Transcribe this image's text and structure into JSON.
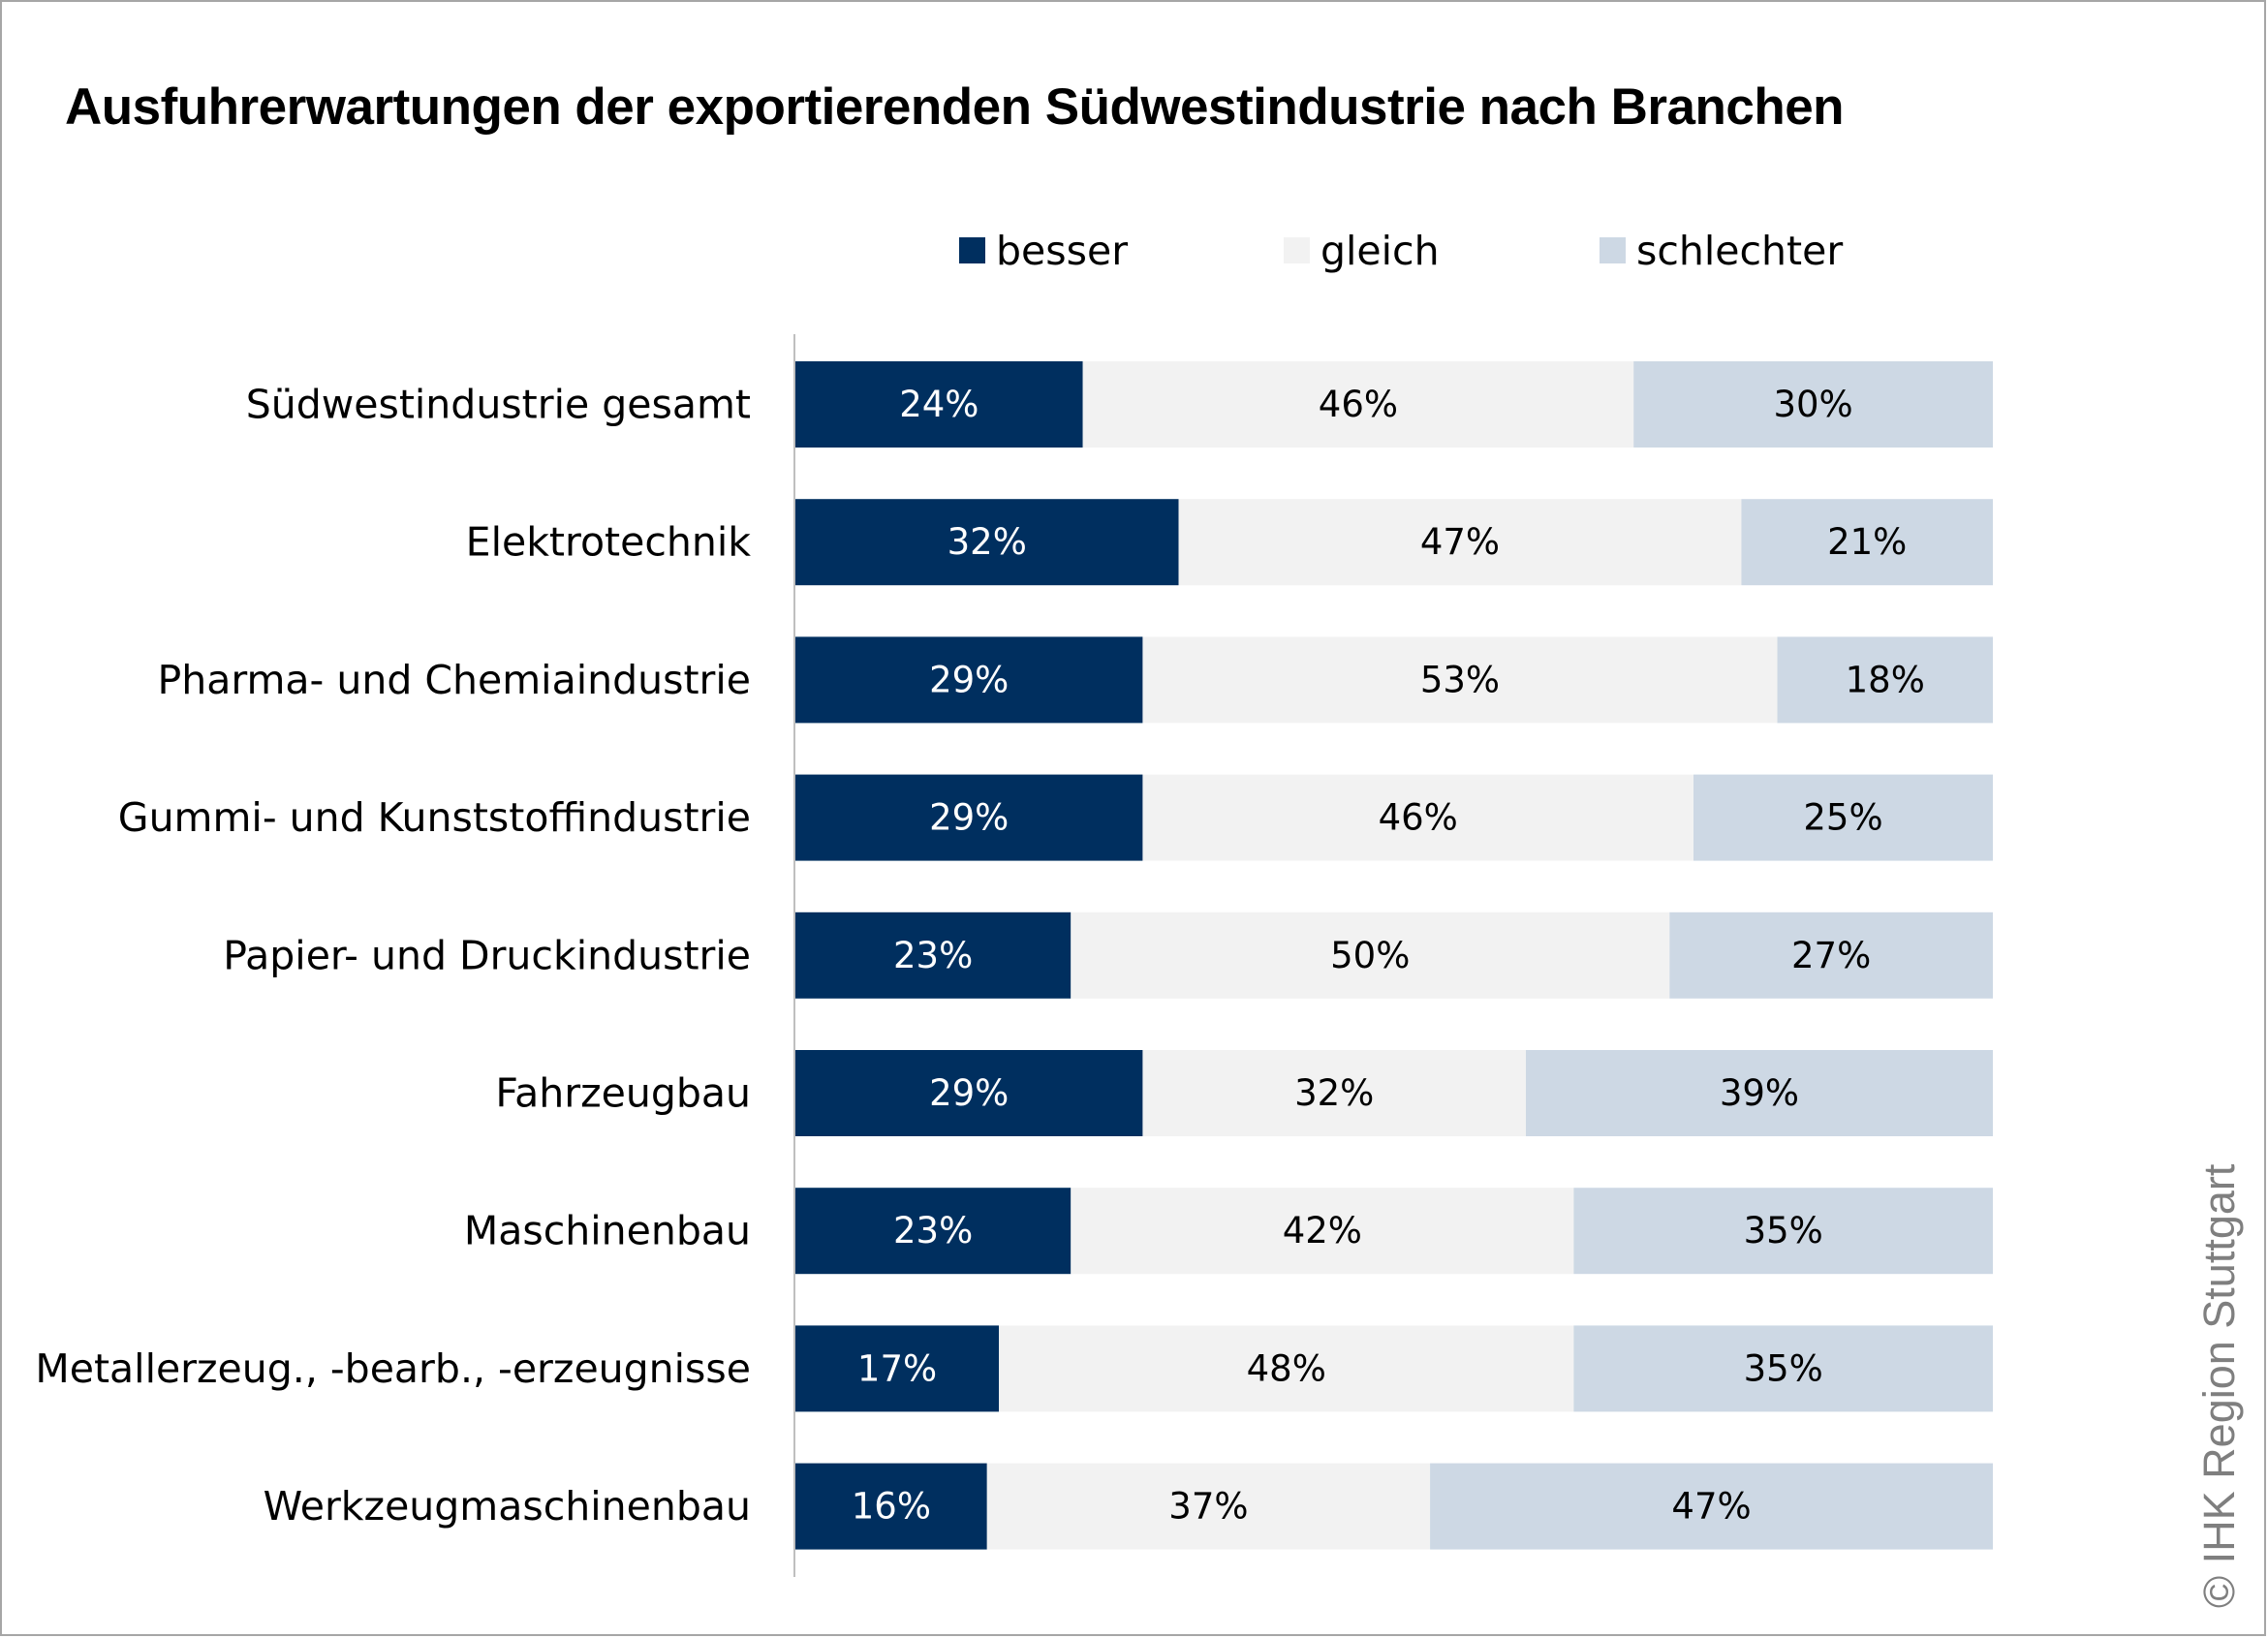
{
  "chart_data": {
    "type": "bar",
    "orientation": "horizontal",
    "stacked": true,
    "title": "Ausfuhrerwartungen der exportierenden Südwestindustrie nach Branchen",
    "xlabel": "",
    "ylabel": "",
    "xlim": [
      0,
      100
    ],
    "legend_position": "top",
    "categories": [
      "Südwestindustrie gesamt",
      "Elektrotechnik",
      "Pharma- und Chemiaindustrie",
      "Gummi- und Kunststoffindustrie",
      "Papier- und Druckindustrie",
      "Fahrzeugbau",
      "Maschinenbau",
      "Metallerzeug., -bearb., -erzeugnisse",
      "Werkzeugmaschinenbau"
    ],
    "series": [
      {
        "name": "besser",
        "color": "#002f5f",
        "label_color": "#ffffff",
        "values": [
          24,
          32,
          29,
          29,
          23,
          29,
          23,
          17,
          16
        ],
        "labels": [
          "24%",
          "32%",
          "29%",
          "29%",
          "23%",
          "29%",
          "23%",
          "17%",
          "16%"
        ]
      },
      {
        "name": "gleich",
        "color": "#f2f2f2",
        "label_color": "#000000",
        "values": [
          46,
          47,
          53,
          46,
          50,
          32,
          42,
          48,
          37
        ],
        "labels": [
          "46%",
          "47%",
          "53%",
          "46%",
          "50%",
          "32%",
          "42%",
          "48%",
          "37%"
        ]
      },
      {
        "name": "schlechter",
        "color": "#cdd8e4",
        "label_color": "#000000",
        "values": [
          30,
          21,
          18,
          25,
          27,
          39,
          35,
          35,
          47
        ],
        "labels": [
          "30%",
          "21%",
          "18%",
          "25%",
          "27%",
          "39%",
          "35%",
          "35%",
          "47%"
        ]
      }
    ]
  },
  "copyright": "© IHK Region Stuttgart"
}
